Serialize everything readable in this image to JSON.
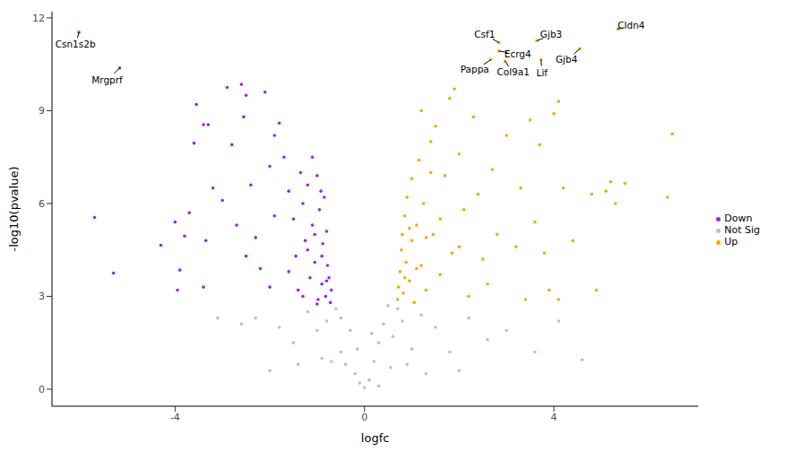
{
  "chart_data": {
    "type": "scatter",
    "x_label": "logfc",
    "y_label": "-log10(pvalue)",
    "xlim": [
      -6.6,
      7.05
    ],
    "ylim": [
      -0.55,
      12.2
    ],
    "xticks": [
      -4,
      0,
      4
    ],
    "yticks": [
      0,
      3,
      6,
      9,
      12
    ],
    "legend": "right",
    "series": [
      {
        "name": "Down",
        "color": "#A020F0",
        "x": [
          -5.7,
          -5.3,
          -4.3,
          -4.0,
          -3.95,
          -3.9,
          -3.8,
          -3.7,
          -3.55,
          -3.6,
          -3.4,
          -3.3,
          -3.2,
          -3.35,
          -3.4,
          -2.9,
          -2.6,
          -2.8,
          -2.5,
          -2.55,
          -2.4,
          -2.7,
          -2.3,
          -2.2,
          -2.1,
          -2.0,
          -1.9,
          -1.8,
          -1.7,
          -1.6,
          -1.5,
          -1.45,
          -1.4,
          -1.35,
          -1.3,
          -1.25,
          -1.2,
          -1.15,
          -1.1,
          -1.05,
          -1.0,
          -0.98,
          -0.95,
          -0.9,
          -0.88,
          -0.85,
          -0.82,
          -0.8,
          -0.78,
          -0.75,
          -0.72,
          -0.7,
          -1.6,
          -2.5,
          -3.0,
          -1.9,
          -1.1,
          -0.92,
          -1.3,
          -2.0,
          -1.0,
          -0.8,
          -0.9,
          -1.2,
          -1.05,
          -6.03,
          -5.17
        ],
        "y": [
          5.55,
          3.75,
          4.65,
          5.4,
          3.2,
          3.85,
          4.95,
          5.7,
          9.2,
          7.95,
          8.55,
          8.55,
          6.5,
          4.8,
          3.3,
          9.75,
          9.85,
          7.9,
          9.5,
          8.8,
          6.6,
          5.3,
          4.9,
          3.9,
          9.6,
          7.2,
          8.2,
          8.6,
          7.5,
          6.4,
          5.5,
          4.3,
          3.2,
          7.0,
          6.0,
          4.8,
          6.6,
          3.6,
          5.3,
          4.1,
          6.9,
          2.9,
          5.8,
          3.4,
          4.7,
          6.2,
          3.0,
          5.1,
          4.0,
          3.6,
          2.8,
          3.2,
          3.8,
          4.3,
          6.1,
          5.6,
          7.5,
          6.4,
          3.0,
          3.3,
          2.75,
          3.5,
          4.3,
          4.5,
          5.0,
          11.53,
          10.38
        ]
      },
      {
        "name": "Not Sig",
        "color": "#BEBEBE",
        "x": [
          -2.3,
          -1.8,
          -1.5,
          -1.2,
          -1.0,
          -0.8,
          -0.6,
          -0.5,
          -0.4,
          -0.3,
          -0.2,
          -0.1,
          0,
          0.1,
          0.2,
          0.3,
          0.4,
          0.5,
          0.6,
          0.8,
          1.0,
          1.2,
          1.5,
          1.8,
          2.2,
          2.6,
          3.0,
          3.6,
          4.1,
          4.6,
          -2.6,
          -2.0,
          -0.7,
          -0.5,
          0.55,
          0.7,
          -3.1,
          -1.4,
          1.3,
          0.3,
          -0.15,
          0.15,
          2.0,
          -0.9,
          0.9
        ],
        "y": [
          2.3,
          2.0,
          1.5,
          2.5,
          1.9,
          2.2,
          2.6,
          1.2,
          0.8,
          1.9,
          0.5,
          0.2,
          0.05,
          0.3,
          0.9,
          1.5,
          2.1,
          2.7,
          1.7,
          2.2,
          1.3,
          2.4,
          2.0,
          1.2,
          2.3,
          1.6,
          1.9,
          1.2,
          2.2,
          0.95,
          2.1,
          0.6,
          0.9,
          2.3,
          0.7,
          2.6,
          2.3,
          0.8,
          0.5,
          0.1,
          1.3,
          1.8,
          0.6,
          1.0,
          0.8
        ]
      },
      {
        "name": "Up",
        "color": "#FFA500",
        "x": [
          0.7,
          0.72,
          0.75,
          0.78,
          0.8,
          0.82,
          0.85,
          0.88,
          0.9,
          0.95,
          1.0,
          1.0,
          1.05,
          1.1,
          1.15,
          1.2,
          1.25,
          1.3,
          1.4,
          1.45,
          1.5,
          1.6,
          1.7,
          1.8,
          1.85,
          1.9,
          2.0,
          2.1,
          2.2,
          2.3,
          2.4,
          2.5,
          2.6,
          2.7,
          2.8,
          3.0,
          3.2,
          3.3,
          3.4,
          3.5,
          3.6,
          3.7,
          3.8,
          3.9,
          4.0,
          4.1,
          4.2,
          4.1,
          4.4,
          4.9,
          4.8,
          5.1,
          5.2,
          5.3,
          5.5,
          6.4,
          6.5,
          1.2,
          1.4,
          0.95,
          1.1,
          1.6,
          2.0,
          1.3,
          0.85,
          5.35,
          2.84,
          2.84,
          3.64,
          4.55,
          2.67,
          2.97,
          3.73
        ],
        "y": [
          2.9,
          3.3,
          3.8,
          4.5,
          5.0,
          3.1,
          5.6,
          4.1,
          6.2,
          3.5,
          6.8,
          4.8,
          2.8,
          5.3,
          7.4,
          4.0,
          6.0,
          3.2,
          8.0,
          5.0,
          8.5,
          3.7,
          6.9,
          9.4,
          4.4,
          9.7,
          7.6,
          5.8,
          3.0,
          8.8,
          6.3,
          4.2,
          3.4,
          7.1,
          5.0,
          8.2,
          4.6,
          6.5,
          2.9,
          8.7,
          5.4,
          7.9,
          4.4,
          3.2,
          8.9,
          9.3,
          6.5,
          2.9,
          4.8,
          3.2,
          6.3,
          6.4,
          6.7,
          6.0,
          6.65,
          6.2,
          8.25,
          9.0,
          7.0,
          5.2,
          3.9,
          5.5,
          4.6,
          4.9,
          3.6,
          11.64,
          11.2,
          10.93,
          11.26,
          11.0,
          10.65,
          10.6,
          10.65
        ]
      }
    ],
    "annotations": [
      {
        "text": "Csn1s2b",
        "x": -6.03,
        "y": 11.53
      },
      {
        "text": "Mrgprf",
        "x": -5.17,
        "y": 10.38
      },
      {
        "text": "Cldn4",
        "x": 5.35,
        "y": 11.64
      },
      {
        "text": "Csf1",
        "x": 2.84,
        "y": 11.2
      },
      {
        "text": "Ecrg4",
        "x": 2.84,
        "y": 10.93
      },
      {
        "text": "Gjb3",
        "x": 3.64,
        "y": 11.26
      },
      {
        "text": "Gjb4",
        "x": 4.55,
        "y": 11.0
      },
      {
        "text": "Pappa",
        "x": 2.67,
        "y": 10.65
      },
      {
        "text": "Col9a1",
        "x": 2.97,
        "y": 10.6
      },
      {
        "text": "Lif",
        "x": 3.73,
        "y": 10.65
      }
    ]
  }
}
